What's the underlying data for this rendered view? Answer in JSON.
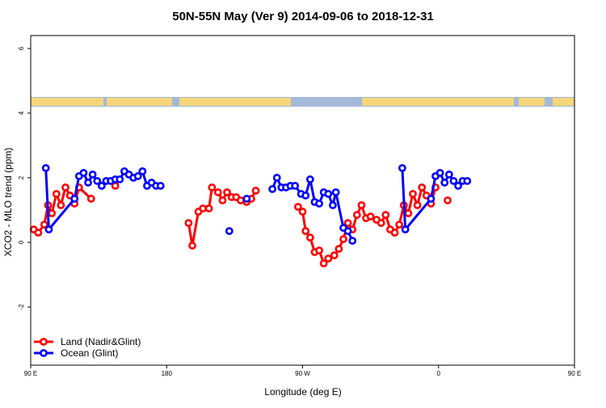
{
  "chart_data": {
    "type": "line",
    "title": "50N-55N May (Ver 9)   2014-09-06 to 2018-12-31",
    "xlabel": "Longitude (deg E)",
    "ylabel": "XCO2 - MLO trend (ppm)",
    "xlim": [
      90,
      450
    ],
    "ylim": [
      -3.8,
      6.4
    ],
    "x_ticks": [
      {
        "value": 90,
        "label": "90 E"
      },
      {
        "value": 180,
        "label": "180"
      },
      {
        "value": 270,
        "label": "90 W"
      },
      {
        "value": 360,
        "label": "0"
      },
      {
        "value": 450,
        "label": "90 E"
      },
      {
        "value": 540,
        "label": "180"
      }
    ],
    "y_ticks": [
      {
        "value": -2,
        "label": "-2"
      },
      {
        "value": 0,
        "label": "0"
      },
      {
        "value": 2,
        "label": "2"
      },
      {
        "value": 4,
        "label": "4"
      },
      {
        "value": 6,
        "label": "6"
      }
    ],
    "grid": false,
    "legend_position": "bottom-left",
    "colors": {
      "land": "#ff0000",
      "ocean": "#0000ff",
      "land_mask": "#f5d67a",
      "ocean_mask": "#a4b8da"
    },
    "series": [
      {
        "name": "Land (Nadir&Glint)",
        "color": "#ff0000",
        "segments": [
          [
            [
              92,
              0.4
            ],
            [
              95,
              0.3
            ],
            [
              99,
              0.55
            ],
            [
              101.5,
              1.15
            ],
            [
              104,
              0.9
            ],
            [
              107,
              1.5
            ],
            [
              110,
              1.15
            ],
            [
              113,
              1.7
            ],
            [
              116,
              1.45
            ],
            [
              119,
              1.2
            ],
            [
              122,
              1.7
            ],
            [
              130,
              1.35
            ]
          ],
          [
            [
              146,
              1.75
            ]
          ],
          [
            [
              194.5,
              0.6
            ],
            [
              197,
              -0.1
            ],
            [
              201,
              0.95
            ],
            [
              204,
              1.05
            ],
            [
              208,
              1.05
            ],
            [
              210,
              1.7
            ],
            [
              214,
              1.55
            ],
            [
              217,
              1.3
            ],
            [
              220,
              1.55
            ],
            [
              223,
              1.4
            ],
            [
              226,
              1.4
            ],
            [
              229,
              1.3
            ],
            [
              233,
              1.25
            ],
            [
              236,
              1.35
            ],
            [
              239,
              1.6
            ]
          ],
          [
            [
              267,
              1.1
            ],
            [
              270,
              0.95
            ],
            [
              272,
              0.35
            ],
            [
              275,
              0.15
            ],
            [
              278,
              -0.3
            ],
            [
              281,
              -0.25
            ],
            [
              284,
              -0.65
            ],
            [
              287,
              -0.5
            ],
            [
              291,
              -0.4
            ],
            [
              294,
              -0.2
            ],
            [
              297,
              0.1
            ],
            [
              300,
              0.6
            ],
            [
              303,
              0.4
            ],
            [
              306,
              0.85
            ],
            [
              309,
              1.15
            ],
            [
              312,
              0.75
            ],
            [
              315,
              0.8
            ],
            [
              319,
              0.7
            ],
            [
              322,
              0.6
            ],
            [
              325,
              0.85
            ],
            [
              328,
              0.4
            ],
            [
              331,
              0.3
            ],
            [
              334,
              0.55
            ],
            [
              337,
              1.15
            ],
            [
              340,
              0.9
            ],
            [
              343,
              1.5
            ],
            [
              346,
              1.15
            ],
            [
              349,
              1.7
            ],
            [
              352,
              1.45
            ],
            [
              355,
              1.2
            ],
            [
              358,
              1.7
            ]
          ],
          [
            [
              366,
              1.3
            ]
          ]
        ]
      },
      {
        "name": "Ocean (Glint)",
        "color": "#0000ff",
        "segments": [
          [
            [
              100,
              2.3
            ],
            [
              102,
              0.4
            ],
            [
              119,
              1.35
            ],
            [
              122,
              2.05
            ],
            [
              125,
              2.15
            ],
            [
              128,
              1.85
            ],
            [
              131,
              2.1
            ],
            [
              134,
              1.9
            ],
            [
              137,
              1.75
            ],
            [
              140,
              1.9
            ],
            [
              143,
              1.9
            ],
            [
              146,
              1.95
            ],
            [
              149,
              1.95
            ],
            [
              152,
              2.2
            ],
            [
              155,
              2.1
            ],
            [
              158,
              2.0
            ],
            [
              161,
              2.05
            ],
            [
              164,
              2.2
            ],
            [
              167,
              1.75
            ],
            [
              170,
              1.85
            ],
            [
              173,
              1.75
            ],
            [
              176,
              1.75
            ]
          ],
          [
            [
              221.5,
              0.35
            ]
          ],
          [
            [
              233,
              1.35
            ]
          ],
          [
            [
              250,
              1.65
            ],
            [
              253,
              2.0
            ],
            [
              256,
              1.7
            ],
            [
              259,
              1.7
            ],
            [
              262,
              1.75
            ],
            [
              265,
              1.75
            ],
            [
              269,
              1.5
            ],
            [
              272,
              1.45
            ],
            [
              275,
              1.95
            ],
            [
              278,
              1.25
            ],
            [
              281,
              1.2
            ],
            [
              284,
              1.55
            ],
            [
              287,
              1.5
            ],
            [
              290,
              1.15
            ],
            [
              292,
              1.55
            ],
            [
              297,
              0.45
            ],
            [
              300,
              0.35
            ],
            [
              303,
              0.05
            ]
          ],
          [
            [
              336,
              2.3
            ],
            [
              338,
              0.4
            ],
            [
              355,
              1.35
            ],
            [
              358,
              2.05
            ],
            [
              361,
              2.15
            ],
            [
              364,
              1.85
            ],
            [
              367,
              2.1
            ],
            [
              370,
              1.9
            ],
            [
              373,
              1.75
            ],
            [
              376,
              1.9
            ],
            [
              379,
              1.9
            ]
          ]
        ]
      }
    ],
    "top_band": {
      "y_range": [
        4.2,
        4.5
      ],
      "description": "land/ocean mask strip"
    }
  }
}
